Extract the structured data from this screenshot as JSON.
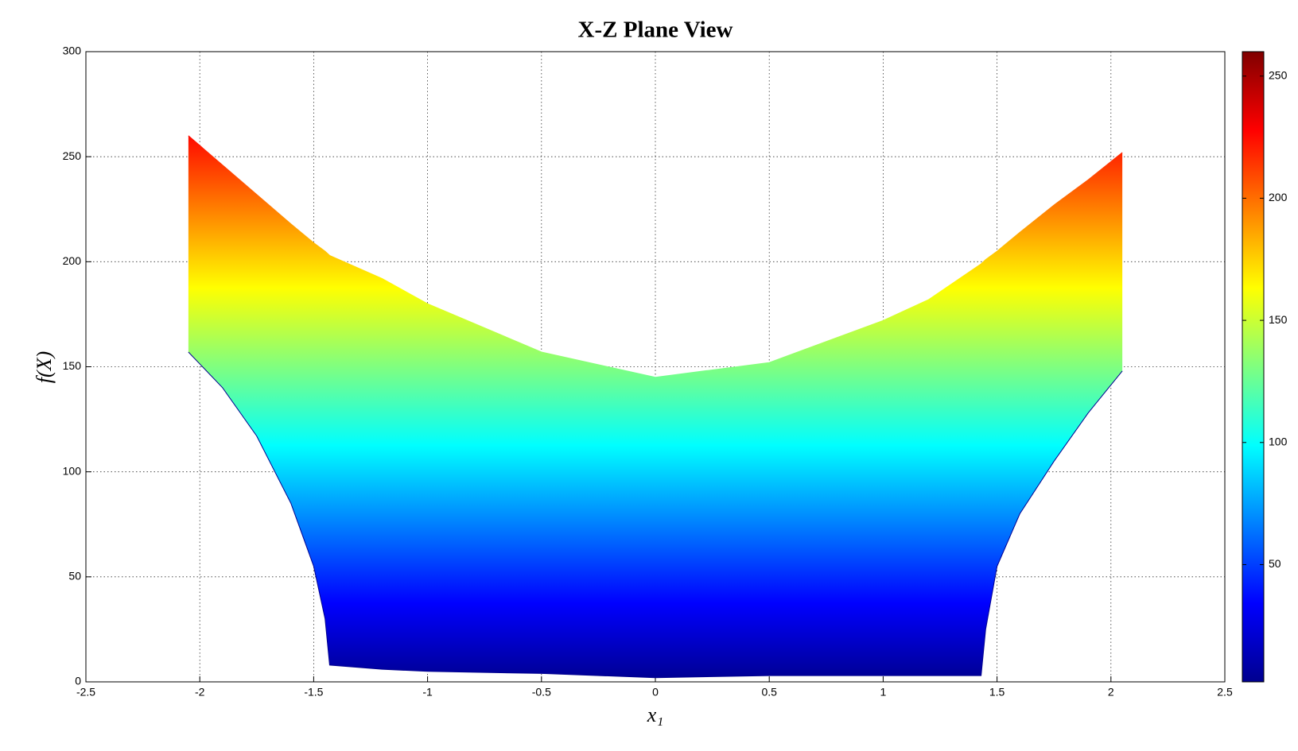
{
  "chart_data": {
    "type": "range_area",
    "title": "X-Z Plane View",
    "xlabel": "x₁",
    "ylabel": "f(X)",
    "x": [
      -2.05,
      -1.9,
      -1.75,
      -1.6,
      -1.5,
      -1.45,
      -1.43,
      -1.2,
      -1,
      -0.5,
      0,
      0.5,
      1,
      1.2,
      1.43,
      1.45,
      1.5,
      1.6,
      1.75,
      1.9,
      2.05
    ],
    "high": [
      260,
      246,
      232,
      218,
      209,
      205,
      203,
      192,
      180,
      157,
      145,
      152,
      172,
      182,
      199,
      201,
      205,
      214,
      227,
      239,
      252
    ],
    "low": [
      157,
      140,
      117,
      85,
      55,
      30,
      8,
      6,
      5,
      4,
      2,
      3,
      3,
      3,
      3,
      25,
      55,
      80,
      105,
      128,
      148
    ],
    "xlim": [
      -2.5,
      2.5
    ],
    "xticks": [
      -2.5,
      -2,
      -1.5,
      -1,
      -0.5,
      0,
      0.5,
      1,
      1.5,
      2,
      2.5
    ],
    "ylim": [
      0,
      300
    ],
    "yticks": [
      0,
      50,
      100,
      150,
      200,
      250,
      300
    ],
    "grid": true,
    "colormap": "jet",
    "colorbar": {
      "lim": [
        2,
        260
      ],
      "ticks": [
        50,
        100,
        150,
        200,
        250
      ]
    }
  }
}
